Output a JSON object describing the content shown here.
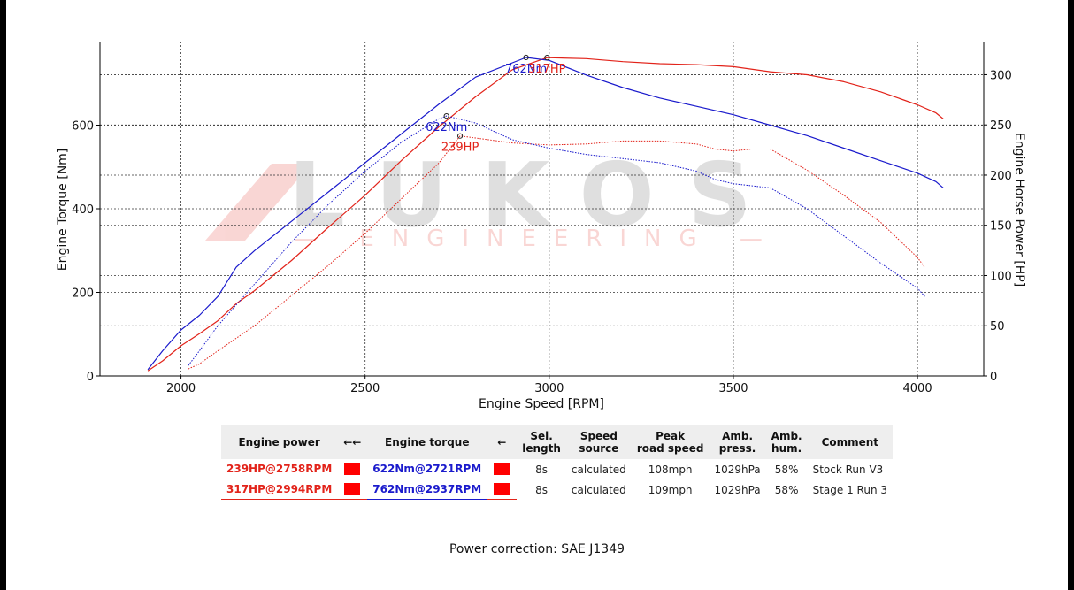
{
  "chart_data": {
    "type": "line",
    "xlabel": "Engine Speed [RPM]",
    "ylabel_left": "Engine Torque [Nm]",
    "ylabel_right": "Engine Horse Power [HP]",
    "xlim": [
      1780,
      4180
    ],
    "ylim_left": [
      0,
      800
    ],
    "ylim_right": [
      0,
      333
    ],
    "x_ticks": [
      2000,
      2500,
      3000,
      3500,
      4000
    ],
    "y_left_ticks": [
      0,
      200,
      400,
      600
    ],
    "y_right_ticks": [
      0,
      50,
      100,
      150,
      200,
      250,
      300
    ],
    "grid": true,
    "watermark": {
      "main": "LUKOS",
      "sub": "— ENGINEERING —"
    },
    "annotations": [
      {
        "text": "762Nm",
        "x": 2937,
        "y": 762,
        "axis": "left",
        "color": "#1a1acc"
      },
      {
        "text": "317HP",
        "x": 2994,
        "y": 317,
        "axis": "right",
        "color": "#e2231a"
      },
      {
        "text": "622Nm",
        "x": 2721,
        "y": 622,
        "axis": "left",
        "color": "#1a1acc"
      },
      {
        "text": "239HP",
        "x": 2758,
        "y": 239,
        "axis": "right",
        "color": "#e2231a"
      }
    ],
    "series": [
      {
        "name": "Engine power",
        "run": "Stage 1 Run 3",
        "axis": "right",
        "color": "#e2231a",
        "style": "solid",
        "x": [
          1910,
          1950,
          2000,
          2050,
          2100,
          2150,
          2200,
          2300,
          2400,
          2500,
          2600,
          2700,
          2800,
          2900,
          2994,
          3100,
          3200,
          3300,
          3400,
          3500,
          3600,
          3700,
          3800,
          3900,
          4000,
          4050,
          4070
        ],
        "y": [
          5,
          15,
          30,
          42,
          55,
          72,
          85,
          115,
          148,
          180,
          215,
          248,
          278,
          305,
          317,
          316,
          313,
          311,
          310,
          308,
          303,
          300,
          293,
          283,
          270,
          262,
          256
        ]
      },
      {
        "name": "Engine torque",
        "run": "Stage 1 Run 3",
        "axis": "left",
        "color": "#1a1acc",
        "style": "solid",
        "x": [
          1910,
          1950,
          2000,
          2050,
          2100,
          2150,
          2200,
          2300,
          2400,
          2500,
          2600,
          2700,
          2800,
          2937,
          3000,
          3100,
          3200,
          3300,
          3400,
          3500,
          3600,
          3700,
          3800,
          3900,
          4000,
          4050,
          4070
        ],
        "y": [
          15,
          60,
          110,
          145,
          190,
          260,
          300,
          370,
          440,
          510,
          580,
          650,
          715,
          762,
          755,
          720,
          690,
          665,
          645,
          625,
          600,
          575,
          545,
          515,
          485,
          465,
          450
        ]
      },
      {
        "name": "Engine power",
        "run": "Stock Run V3",
        "axis": "right",
        "color": "#e2231a",
        "style": "dotted",
        "x": [
          2020,
          2050,
          2100,
          2200,
          2300,
          2400,
          2500,
          2600,
          2700,
          2758,
          2800,
          2900,
          3000,
          3100,
          3200,
          3300,
          3400,
          3450,
          3500,
          3550,
          3600,
          3700,
          3800,
          3900,
          4000,
          4020
        ],
        "y": [
          7,
          12,
          25,
          50,
          80,
          110,
          142,
          177,
          212,
          239,
          237,
          232,
          230,
          231,
          234,
          234,
          231,
          226,
          224,
          226,
          226,
          205,
          180,
          153,
          118,
          108
        ]
      },
      {
        "name": "Engine torque",
        "run": "Stock Run V3",
        "axis": "left",
        "color": "#1a1acc",
        "style": "dotted",
        "x": [
          2020,
          2050,
          2100,
          2200,
          2300,
          2400,
          2500,
          2600,
          2700,
          2721,
          2800,
          2900,
          3000,
          3100,
          3200,
          3300,
          3400,
          3450,
          3500,
          3600,
          3700,
          3800,
          3900,
          4000,
          4020
        ],
        "y": [
          25,
          60,
          120,
          220,
          320,
          410,
          490,
          560,
          615,
          622,
          605,
          565,
          545,
          530,
          520,
          510,
          490,
          470,
          460,
          450,
          400,
          335,
          270,
          210,
          190
        ]
      }
    ]
  },
  "table": {
    "headers": {
      "power": "Engine power",
      "power_arrow": "←←",
      "torque": "Engine torque",
      "torque_arrow": "←",
      "sel_length": "Sel.\nlength",
      "speed_source": "Speed\nsource",
      "peak_speed": "Peak\nroad speed",
      "amb_press": "Amb.\npress.",
      "amb_hum": "Amb.\nhum.",
      "comment": "Comment"
    },
    "rows": [
      {
        "power": "239HP@2758RPM",
        "torque": "622Nm@2721RPM",
        "sel_length": "8s",
        "speed_source": "calculated",
        "peak_speed": "108mph",
        "amb_press": "1029hPa",
        "amb_hum": "58%",
        "comment": "Stock Run V3",
        "swatch_color": "#ff0000"
      },
      {
        "power": "317HP@2994RPM",
        "torque": "762Nm@2937RPM",
        "sel_length": "8s",
        "speed_source": "calculated",
        "peak_speed": "109mph",
        "amb_press": "1029hPa",
        "amb_hum": "58%",
        "comment": "Stage 1 Run 3",
        "swatch_color": "#ff0000"
      }
    ]
  },
  "correction": "Power correction: SAE J1349"
}
